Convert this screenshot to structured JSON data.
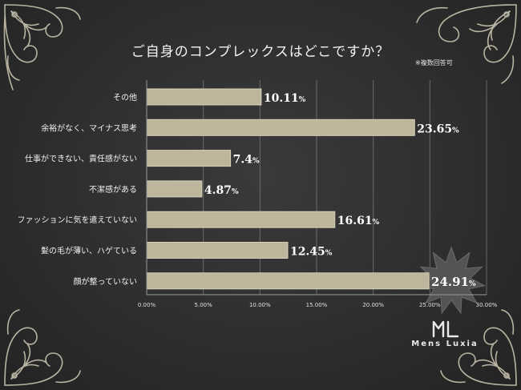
{
  "chart_data": {
    "type": "bar",
    "orientation": "horizontal",
    "title": "ご自身のコンプレックスはどこですか？",
    "note": "※複数回答可",
    "categories": [
      "その他",
      "余裕がなく、マイナス思考",
      "仕事ができない、責任感がない",
      "不潔感がある",
      "ファッションに気を遣えていない",
      "髪の毛が薄い、ハゲている",
      "顔が整っていない"
    ],
    "values": [
      10.11,
      23.65,
      7.4,
      4.87,
      16.61,
      12.45,
      24.91
    ],
    "value_labels": [
      "10.11",
      "23.65",
      "7.4",
      "4.87",
      "16.61",
      "12.45",
      "24.91"
    ],
    "value_suffix": "%",
    "xlim": [
      0,
      30
    ],
    "x_ticks": [
      "0.00%",
      "5.00%",
      "10.00%",
      "15.00%",
      "20.00%",
      "25.00%",
      "30.00%"
    ],
    "x_tick_values": [
      0,
      5,
      10,
      15,
      20,
      25,
      30
    ],
    "grid": "vertical",
    "highlight_index": 6
  },
  "logo": {
    "text": "Mens Luxia",
    "mark": "ML"
  },
  "colors": {
    "bar": "#bdb69c",
    "bar_border": "#d8d2b8",
    "grid": "#6a6a6a",
    "axis": "#9a9a9a",
    "text": "#f0f0f0",
    "starburst": "#545454",
    "ornament": "#b9b4a2"
  }
}
